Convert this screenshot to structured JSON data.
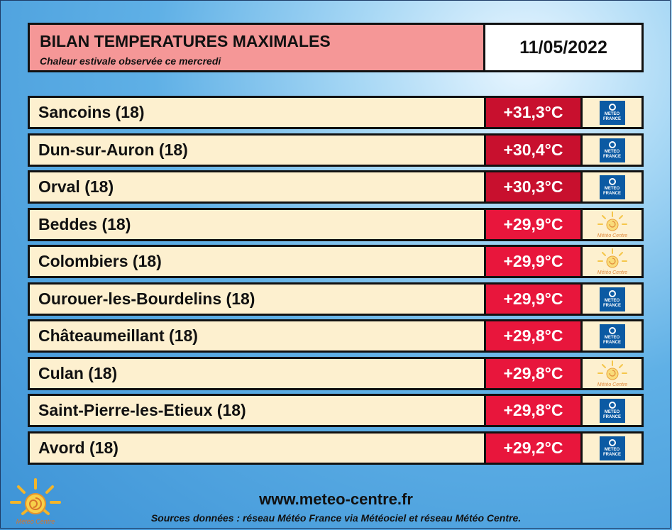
{
  "header": {
    "title": "BILAN TEMPERATURES MAXIMALES",
    "subtitle": "Chaleur estivale observée ce mercredi",
    "date": "11/05/2022"
  },
  "rows": [
    {
      "name": "Sancoins (18)",
      "temp": "+31,3°C",
      "source": "meteo-france"
    },
    {
      "name": "Dun-sur-Auron (18)",
      "temp": "+30,4°C",
      "source": "meteo-france"
    },
    {
      "name": "Orval (18)",
      "temp": "+30,3°C",
      "source": "meteo-france"
    },
    {
      "name": "Beddes (18)",
      "temp": "+29,9°C",
      "source": "meteo-centre"
    },
    {
      "name": "Colombiers (18)",
      "temp": "+29,9°C",
      "source": "meteo-centre"
    },
    {
      "name": "Ourouer-les-Bourdelins (18)",
      "temp": "+29,9°C",
      "source": "meteo-france"
    },
    {
      "name": "Châteaumeillant (18)",
      "temp": "+29,8°C",
      "source": "meteo-france"
    },
    {
      "name": "Culan (18)",
      "temp": "+29,8°C",
      "source": "meteo-centre"
    },
    {
      "name": "Saint-Pierre-les-Etieux (18)",
      "temp": "+29,8°C",
      "source": "meteo-france"
    },
    {
      "name": "Avord (18)",
      "temp": "+29,2°C",
      "source": "meteo-france"
    }
  ],
  "logos": {
    "meteo_france": {
      "line1": "METEO",
      "line2": "FRANCE"
    },
    "meteo_centre": {
      "text": "Météo Centre"
    }
  },
  "footer": {
    "url": "www.meteo-centre.fr",
    "sources": "Sources données : réseau Météo France via Météociel et réseau Météo Centre."
  },
  "colors": {
    "header_bg": "#f59797",
    "row_bg": "#fdf0cf",
    "temp_bg": "#e8163c",
    "temp_bg_dark": "#c8102e",
    "meteo_france_blue": "#0b5aa3"
  }
}
